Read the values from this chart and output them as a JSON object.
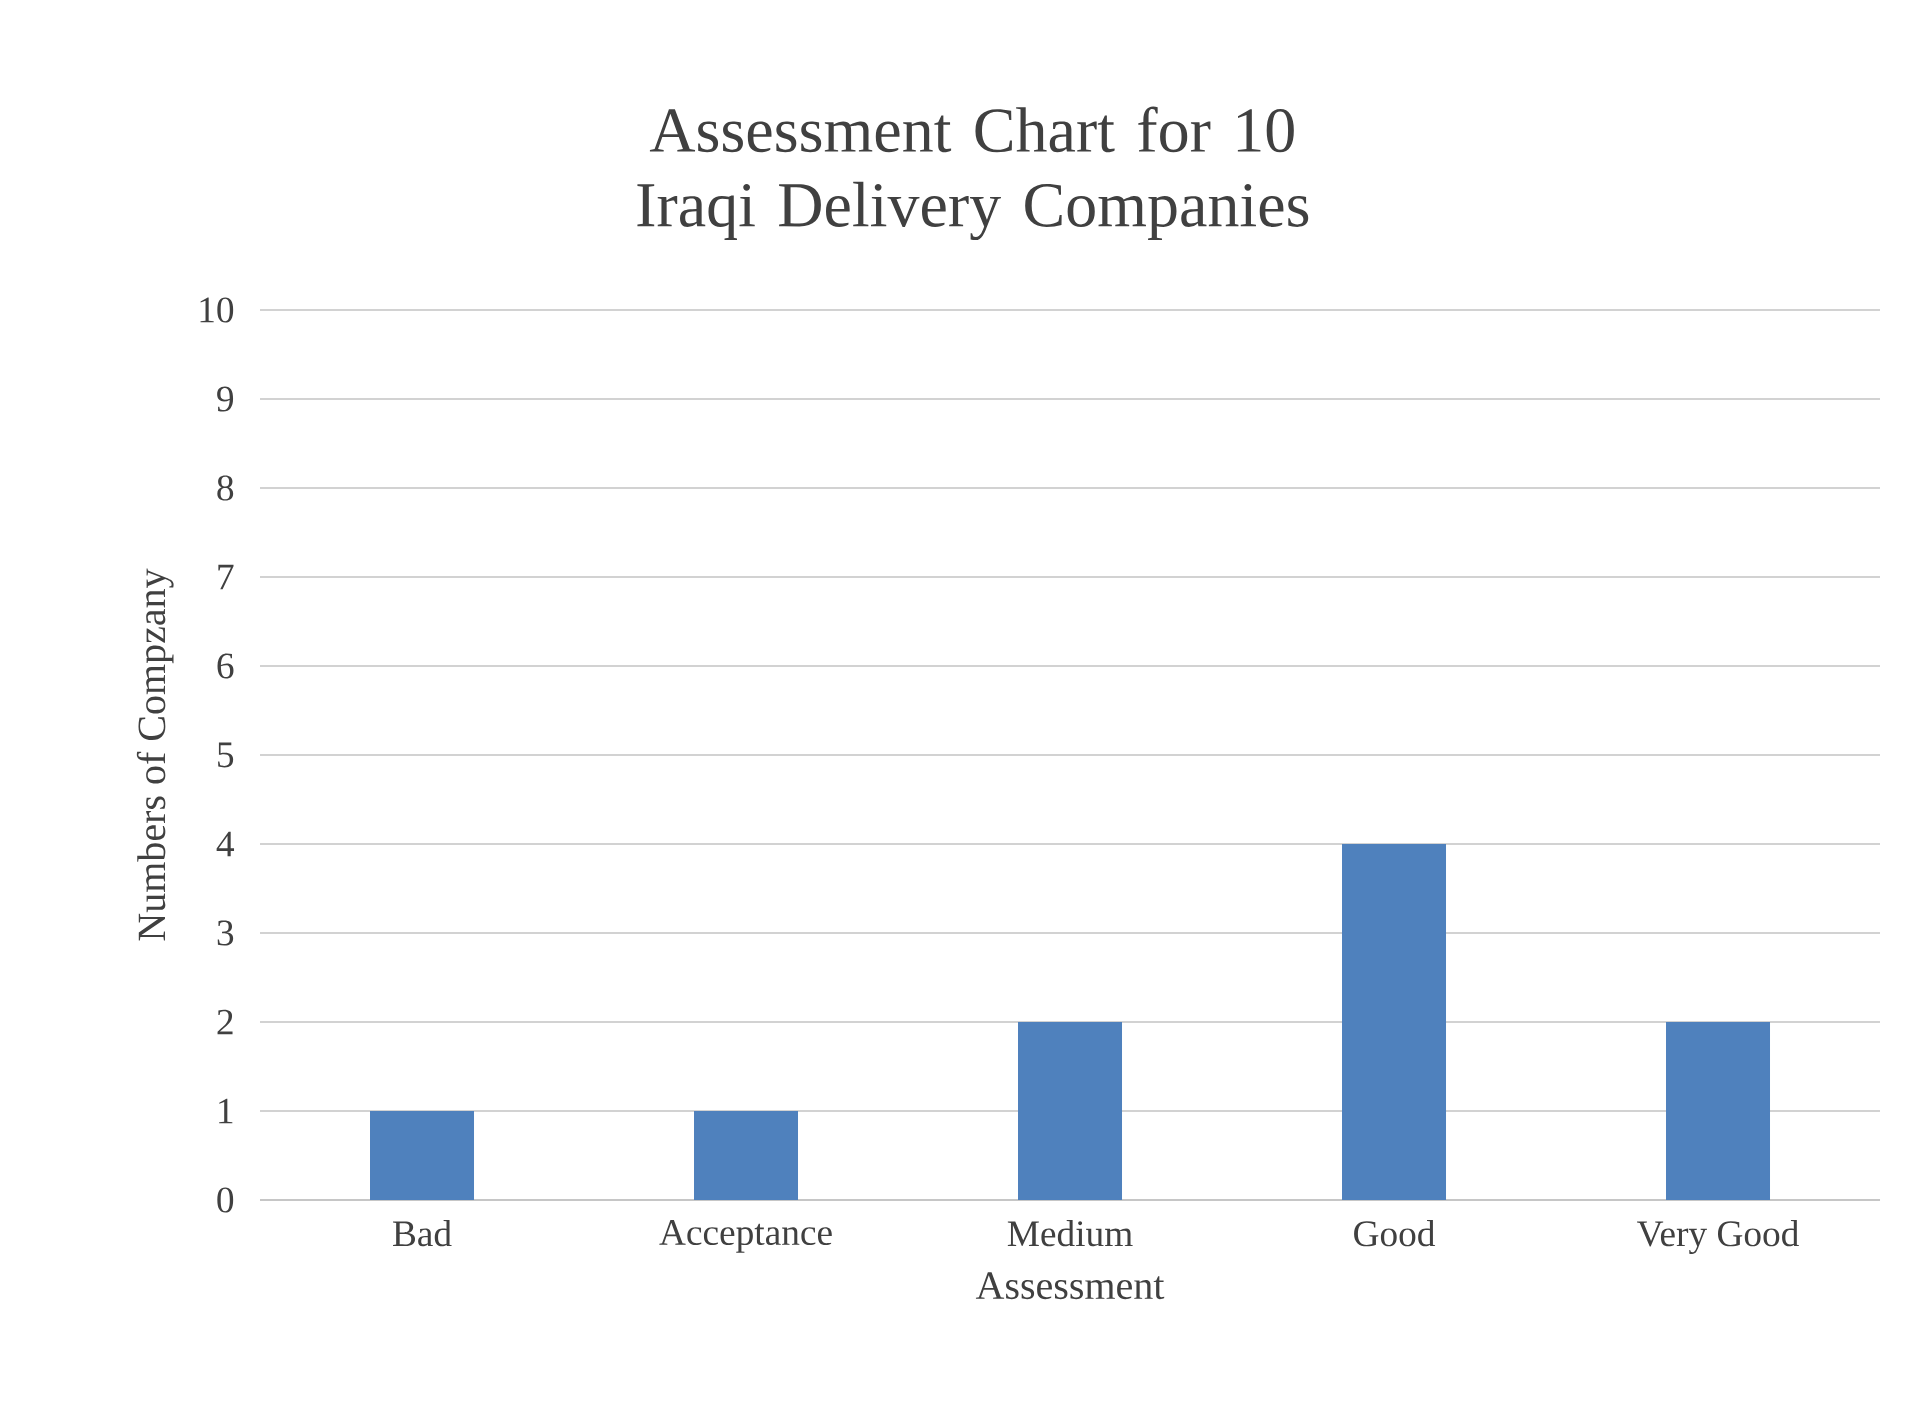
{
  "chart_data": {
    "type": "bar",
    "title": "Assessment Chart for 10 Iraqi Delivery Companies",
    "xlabel": "Assessment",
    "ylabel": "Numbers of Compzany",
    "categories": [
      "Bad",
      "Acceptance",
      "Medium",
      "Good",
      "Very Good"
    ],
    "values": [
      1,
      1,
      2,
      4,
      2
    ],
    "color": "#4f81bd",
    "ylim": [
      0,
      10
    ],
    "yticks": [
      0,
      1,
      2,
      3,
      4,
      5,
      6,
      7,
      8,
      9,
      10
    ],
    "grid": "y"
  }
}
